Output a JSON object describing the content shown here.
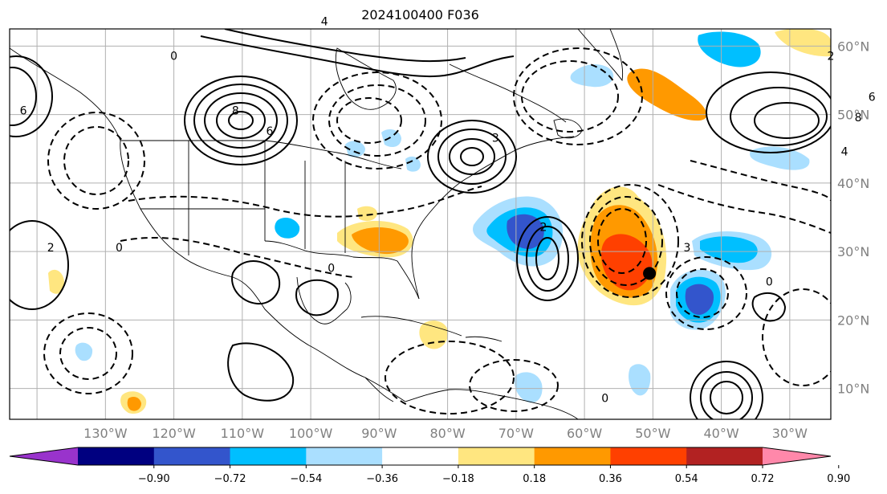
{
  "title": "2024100400 F036",
  "map": {
    "lon_labels": [
      "130°W",
      "120°W",
      "110°W",
      "100°W",
      "90°W",
      "80°W",
      "70°W",
      "60°W",
      "50°W",
      "40°W",
      "30°W"
    ],
    "lat_labels": [
      "60°N",
      "50°N",
      "40°N",
      "30°N",
      "20°N",
      "10°N"
    ],
    "marker": {
      "lon": -50.5,
      "lat": 26.8,
      "color": "#000000"
    },
    "contour_labels": [
      {
        "text": "6",
        "lon": -142,
        "lat": 50
      },
      {
        "text": "8",
        "lon": -111,
        "lat": 50
      },
      {
        "text": "6",
        "lon": -106,
        "lat": 47
      },
      {
        "text": "4",
        "lon": -98,
        "lat": 63
      },
      {
        "text": "3",
        "lon": -73,
        "lat": 46
      },
      {
        "text": "2",
        "lon": -66,
        "lat": 33
      },
      {
        "text": "3",
        "lon": -45,
        "lat": 30
      },
      {
        "text": "8",
        "lon": -20,
        "lat": 49
      },
      {
        "text": "6",
        "lon": -18,
        "lat": 52
      },
      {
        "text": "4",
        "lon": -22,
        "lat": 44
      },
      {
        "text": "2",
        "lon": -24,
        "lat": 58
      },
      {
        "text": "0",
        "lon": -120,
        "lat": 58
      },
      {
        "text": "0",
        "lon": -97,
        "lat": 27
      },
      {
        "text": "0",
        "lon": -57,
        "lat": 8
      },
      {
        "text": "0",
        "lon": -33,
        "lat": 25
      },
      {
        "text": "0",
        "lon": -128,
        "lat": 30
      },
      {
        "text": "2",
        "lon": -138,
        "lat": 30
      }
    ]
  },
  "colorbar": {
    "colors": [
      "#9933cc",
      "#000080",
      "#3355cc",
      "#00bfff",
      "#aadfff",
      "#ffffff",
      "#ffe680",
      "#ff9900",
      "#ff4000",
      "#b22222",
      "#ff88aa"
    ],
    "tick_labels": [
      "−0.90",
      "−0.72",
      "−0.54",
      "−0.36",
      "−0.18",
      "0.18",
      "0.36",
      "0.54",
      "0.72",
      "0.90"
    ]
  }
}
